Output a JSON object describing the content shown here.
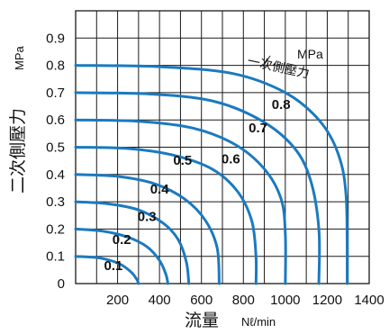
{
  "chart_data": {
    "type": "line",
    "title": "",
    "xlabel": "流量",
    "xlabel_unit": "Nℓ/min",
    "ylabel": "二次側壓力",
    "ylabel_unit": "MPa",
    "xlim": [
      0,
      1400
    ],
    "ylim": [
      0,
      1.0
    ],
    "x_ticks": [
      {
        "value": 200,
        "label": "200"
      },
      {
        "value": 400,
        "label": "400"
      },
      {
        "value": 600,
        "label": "600"
      },
      {
        "value": 800,
        "label": "800"
      },
      {
        "value": 1000,
        "label": "1000"
      },
      {
        "value": 1200,
        "label": "1200"
      },
      {
        "value": 1400,
        "label": "1400"
      }
    ],
    "y_ticks": [
      {
        "value": 0,
        "label": "0"
      },
      {
        "value": 0.1,
        "label": "0.1"
      },
      {
        "value": 0.2,
        "label": "0.2"
      },
      {
        "value": 0.3,
        "label": "0.3"
      },
      {
        "value": 0.4,
        "label": "0.4"
      },
      {
        "value": 0.5,
        "label": "0.5"
      },
      {
        "value": 0.6,
        "label": "0.6"
      },
      {
        "value": 0.7,
        "label": "0.7"
      },
      {
        "value": 0.8,
        "label": "0.8"
      },
      {
        "value": 0.9,
        "label": "0.9"
      }
    ],
    "grid": true,
    "legend": {
      "title": "MPa",
      "caption": "一次側壓力",
      "placement": "top-right"
    },
    "series": [
      {
        "name": "0.1",
        "setpoint": 0.1,
        "points": [
          [
            0,
            0.1
          ],
          [
            120,
            0.093
          ],
          [
            210,
            0.072
          ],
          [
            265,
            0.042
          ],
          [
            292,
            0.015
          ],
          [
            300,
            0
          ]
        ]
      },
      {
        "name": "0.2",
        "setpoint": 0.2,
        "points": [
          [
            0,
            0.2
          ],
          [
            130,
            0.192
          ],
          [
            250,
            0.17
          ],
          [
            340,
            0.135
          ],
          [
            400,
            0.085
          ],
          [
            430,
            0.035
          ],
          [
            440,
            0
          ]
        ]
      },
      {
        "name": "0.3",
        "setpoint": 0.3,
        "points": [
          [
            0,
            0.3
          ],
          [
            150,
            0.293
          ],
          [
            300,
            0.27
          ],
          [
            420,
            0.22
          ],
          [
            490,
            0.16
          ],
          [
            528,
            0.08
          ],
          [
            540,
            0
          ]
        ]
      },
      {
        "name": "0.4",
        "setpoint": 0.4,
        "points": [
          [
            0,
            0.4
          ],
          [
            200,
            0.393
          ],
          [
            380,
            0.365
          ],
          [
            520,
            0.31
          ],
          [
            620,
            0.23
          ],
          [
            675,
            0.13
          ],
          [
            685,
            0
          ]
        ]
      },
      {
        "name": "0.5",
        "setpoint": 0.5,
        "points": [
          [
            0,
            0.5
          ],
          [
            250,
            0.495
          ],
          [
            470,
            0.47
          ],
          [
            650,
            0.42
          ],
          [
            770,
            0.34
          ],
          [
            840,
            0.23
          ],
          [
            860,
            0.1
          ],
          [
            860,
            0
          ]
        ]
      },
      {
        "name": "0.6",
        "setpoint": 0.6,
        "points": [
          [
            0,
            0.6
          ],
          [
            300,
            0.595
          ],
          [
            560,
            0.57
          ],
          [
            760,
            0.51
          ],
          [
            900,
            0.42
          ],
          [
            980,
            0.31
          ],
          [
            1000,
            0.18
          ],
          [
            1000,
            0
          ]
        ]
      },
      {
        "name": "0.7",
        "setpoint": 0.7,
        "points": [
          [
            0,
            0.7
          ],
          [
            350,
            0.695
          ],
          [
            650,
            0.67
          ],
          [
            880,
            0.6
          ],
          [
            1040,
            0.5
          ],
          [
            1120,
            0.38
          ],
          [
            1160,
            0.2
          ],
          [
            1160,
            0
          ]
        ]
      },
      {
        "name": "0.8",
        "setpoint": 0.8,
        "points": [
          [
            0,
            0.8
          ],
          [
            400,
            0.795
          ],
          [
            750,
            0.77
          ],
          [
            1000,
            0.7
          ],
          [
            1160,
            0.6
          ],
          [
            1250,
            0.48
          ],
          [
            1290,
            0.32
          ],
          [
            1295,
            0
          ]
        ]
      }
    ],
    "series_label_positions": [
      {
        "name": "0.1",
        "x": 180,
        "y": 0.05
      },
      {
        "name": "0.2",
        "x": 220,
        "y": 0.145
      },
      {
        "name": "0.3",
        "x": 340,
        "y": 0.23
      },
      {
        "name": "0.4",
        "x": 400,
        "y": 0.33
      },
      {
        "name": "0.5",
        "x": 510,
        "y": 0.435
      },
      {
        "name": "0.6",
        "x": 740,
        "y": 0.44
      },
      {
        "name": "0.7",
        "x": 870,
        "y": 0.555
      },
      {
        "name": "0.8",
        "x": 980,
        "y": 0.64
      }
    ],
    "colors": {
      "curve": "#1a7ac0",
      "grid": "#1a1a1a",
      "text": "#111111"
    }
  }
}
